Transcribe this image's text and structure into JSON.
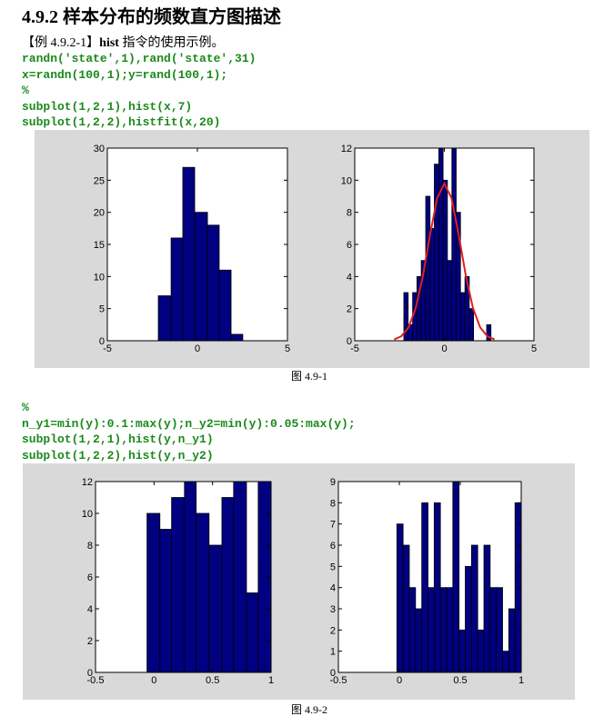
{
  "heading": "4.9.2  样本分布的频数直方图描述",
  "example": {
    "label": "【例 4.9.2-1】",
    "cmd": "hist",
    "text": "指令的使用示例。"
  },
  "code1": [
    "randn('state',1),rand('state',31)",
    "x=randn(100,1);y=rand(100,1);",
    "%",
    "subplot(1,2,1),hist(x,7)",
    "subplot(1,2,2),histfit(x,20)"
  ],
  "caption1": "图 4.9-1",
  "code2": [
    "%",
    "n_y1=min(y):0.1:max(y);n_y2=min(y):0.05:max(y);",
    "subplot(1,2,1),hist(y,n_y1)",
    "subplot(1,2,2),hist(y,n_y2)"
  ],
  "caption2": "图 4.9-2",
  "chart_data": [
    {
      "type": "histogram",
      "color": "#000080",
      "bins": [
        -2.17,
        -1.46,
        -0.81,
        -0.15,
        0.56,
        1.21,
        1.87,
        2.52
      ],
      "values": [
        7,
        16,
        27,
        20,
        18,
        11,
        1
      ],
      "xlim": [
        -5,
        5
      ],
      "xticks": [
        -5,
        0,
        5
      ],
      "ylim": [
        0,
        30
      ],
      "yticks": [
        0,
        5,
        10,
        15,
        20,
        25,
        30
      ]
    },
    {
      "type": "histogram",
      "color": "#000080",
      "bins": [
        -2.26,
        -2.02,
        -1.77,
        -1.53,
        -1.29,
        -1.04,
        -0.8,
        -0.56,
        -0.31,
        -0.07,
        0.17,
        0.42,
        0.66,
        0.9,
        1.15,
        1.39,
        1.63,
        1.87,
        2.12,
        2.36,
        2.6
      ],
      "values": [
        3,
        1,
        3,
        4,
        5,
        9,
        7,
        11,
        12,
        10,
        5,
        12,
        8,
        3,
        4,
        2,
        0,
        0,
        0,
        1
      ],
      "fit": {
        "color": "#e02020",
        "x": [
          -2.8,
          -2.4,
          -2,
          -1.6,
          -1.2,
          -0.8,
          -0.4,
          0,
          0.4,
          0.8,
          1.2,
          1.6,
          2,
          2.4,
          2.8
        ],
        "y": [
          0.08,
          0.28,
          0.83,
          2.02,
          4.03,
          6.6,
          8.88,
          9.8,
          8.88,
          6.6,
          4.03,
          2.02,
          0.83,
          0.28,
          0.08
        ]
      },
      "xlim": [
        -5,
        5
      ],
      "xticks": [
        -5,
        0,
        5
      ],
      "ylim": [
        0,
        12
      ],
      "yticks": [
        0,
        2,
        4,
        6,
        8,
        10,
        12
      ]
    },
    {
      "type": "histogram",
      "color": "#000080",
      "bins": [
        -0.06,
        0.05,
        0.15,
        0.26,
        0.36,
        0.47,
        0.58,
        0.68,
        0.79,
        0.89,
        1.0
      ],
      "values": [
        10,
        9,
        11,
        12,
        10,
        8,
        11,
        12,
        5,
        12
      ],
      "xlim": [
        -0.5,
        1
      ],
      "xticks": [
        -0.5,
        0,
        0.5,
        1
      ],
      "ylim": [
        0,
        12
      ],
      "yticks": [
        0,
        2,
        4,
        6,
        8,
        10,
        12
      ]
    },
    {
      "type": "histogram",
      "color": "#000080",
      "bins": [
        -0.02,
        0.031,
        0.082,
        0.133,
        0.184,
        0.235,
        0.286,
        0.337,
        0.388,
        0.439,
        0.49,
        0.541,
        0.592,
        0.643,
        0.694,
        0.745,
        0.796,
        0.847,
        0.898,
        0.949,
        1.0
      ],
      "values": [
        7,
        6,
        4,
        3,
        8,
        4,
        8,
        4,
        4,
        9,
        2,
        5,
        6,
        2,
        6,
        4,
        4,
        1,
        3,
        8
      ],
      "xlim": [
        -0.5,
        1
      ],
      "xticks": [
        -0.5,
        0,
        0.5,
        1
      ],
      "ylim": [
        0,
        9
      ],
      "yticks": [
        0,
        1,
        2,
        3,
        4,
        5,
        6,
        7,
        8,
        9
      ]
    }
  ]
}
